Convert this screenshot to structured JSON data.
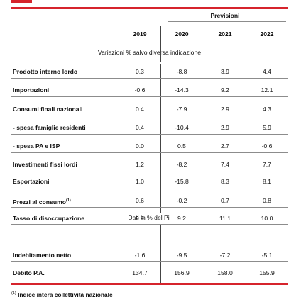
{
  "header": {
    "group_label": "Previsioni",
    "years": [
      "2019",
      "2020",
      "2021",
      "2022"
    ],
    "subheader_1": "Variazioni % salvo diversa indicazione",
    "subheader_2": "Dati in % del Pil"
  },
  "rows": [
    {
      "label": "Prodotto interno lordo",
      "values": [
        "0.3",
        "-8.8",
        "3.9",
        "4.4"
      ]
    },
    {
      "label": "Importazioni",
      "values": [
        "-0.6",
        "-14.3",
        "9.2",
        "12.1"
      ]
    },
    {
      "label": "Consumi finali nazionali",
      "values": [
        "0.4",
        "-7.9",
        "2.9",
        "4.3"
      ]
    },
    {
      "label": "- spesa famiglie residenti",
      "values": [
        "0.4",
        "-10.4",
        "2.9",
        "5.9"
      ]
    },
    {
      "label": "- spesa PA e ISP",
      "values": [
        "0.0",
        "0.5",
        "2.7",
        "-0.6"
      ]
    },
    {
      "label": "Investimenti fissi lordi",
      "values": [
        "1.2",
        "-8.2",
        "7.4",
        "7.7"
      ]
    },
    {
      "label": "Esportazioni",
      "values": [
        "1.0",
        "-15.8",
        "8.3",
        "8.1"
      ]
    },
    {
      "label": "Prezzi al consumo",
      "sup": "(1)",
      "values": [
        "0.6",
        "-0.2",
        "0.7",
        "0.8"
      ]
    },
    {
      "label": "Tasso di disoccupazione",
      "values": [
        "9.9",
        "9.2",
        "11.1",
        "10.0"
      ]
    },
    {
      "label": "Indebitamento netto",
      "values": [
        "-1.6",
        "-9.5",
        "-7.2",
        "-5.1"
      ]
    },
    {
      "label": "Debito P.A.",
      "values": [
        "134.7",
        "156.9",
        "158.0",
        "155.9"
      ]
    }
  ],
  "footnote": {
    "mark": "(1)",
    "text": "Indice intera collettività nazionale"
  },
  "colors": {
    "accent": "#d6242c",
    "rule": "#8c8c8c"
  }
}
